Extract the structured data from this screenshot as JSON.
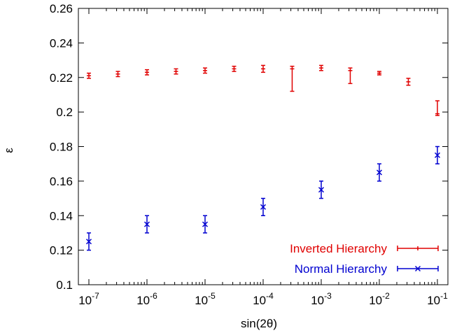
{
  "chart_data": {
    "type": "scatter",
    "title": "",
    "xlabel": "sin(2θ)",
    "ylabel": "ε",
    "x_scale": "log",
    "xlim": [
      1e-07,
      0.1
    ],
    "ylim": [
      0.1,
      0.26
    ],
    "grid": false,
    "legend_position": "bottom-right",
    "x_ticks": [
      {
        "value": 1e-07,
        "base": "10",
        "exp": "-7"
      },
      {
        "value": 1e-06,
        "base": "10",
        "exp": "-6"
      },
      {
        "value": 1e-05,
        "base": "10",
        "exp": "-5"
      },
      {
        "value": 0.0001,
        "base": "10",
        "exp": "-4"
      },
      {
        "value": 0.001,
        "base": "10",
        "exp": "-3"
      },
      {
        "value": 0.01,
        "base": "10",
        "exp": "-2"
      },
      {
        "value": 0.1,
        "base": "10",
        "exp": "-1"
      }
    ],
    "y_ticks": [
      {
        "value": 0.1,
        "label": "0.1"
      },
      {
        "value": 0.12,
        "label": "0.12"
      },
      {
        "value": 0.14,
        "label": "0.14"
      },
      {
        "value": 0.16,
        "label": "0.16"
      },
      {
        "value": 0.18,
        "label": "0.18"
      },
      {
        "value": 0.2,
        "label": "0.2"
      },
      {
        "value": 0.22,
        "label": "0.22"
      },
      {
        "value": 0.24,
        "label": "0.24"
      },
      {
        "value": 0.26,
        "label": "0.26"
      }
    ],
    "series": [
      {
        "name": "Inverted Hierarchy",
        "color": "#e00000",
        "marker": "plus",
        "points": [
          {
            "x": 1e-07,
            "y": 0.221,
            "low": 0.2195,
            "high": 0.2225
          },
          {
            "x": 3.16e-07,
            "y": 0.222,
            "low": 0.2205,
            "high": 0.2235
          },
          {
            "x": 1e-06,
            "y": 0.223,
            "low": 0.2215,
            "high": 0.2245
          },
          {
            "x": 3.16e-06,
            "y": 0.2235,
            "low": 0.222,
            "high": 0.225
          },
          {
            "x": 1e-05,
            "y": 0.224,
            "low": 0.2225,
            "high": 0.2255
          },
          {
            "x": 3.16e-05,
            "y": 0.225,
            "low": 0.2235,
            "high": 0.2265
          },
          {
            "x": 0.0001,
            "y": 0.225,
            "low": 0.223,
            "high": 0.227
          },
          {
            "x": 0.000316,
            "y": 0.225,
            "low": 0.212,
            "high": 0.2265
          },
          {
            "x": 0.001,
            "y": 0.2255,
            "low": 0.224,
            "high": 0.227
          },
          {
            "x": 0.00316,
            "y": 0.224,
            "low": 0.2165,
            "high": 0.2255
          },
          {
            "x": 0.01,
            "y": 0.2225,
            "low": 0.2215,
            "high": 0.2235
          },
          {
            "x": 0.0316,
            "y": 0.2175,
            "low": 0.2155,
            "high": 0.2195
          },
          {
            "x": 0.1,
            "y": 0.199,
            "low": 0.198,
            "high": 0.2065
          }
        ]
      },
      {
        "name": "Normal Hierarchy",
        "color": "#0000d0",
        "marker": "cross",
        "points": [
          {
            "x": 1e-07,
            "y": 0.125,
            "low": 0.12,
            "high": 0.13
          },
          {
            "x": 1e-06,
            "y": 0.135,
            "low": 0.13,
            "high": 0.14
          },
          {
            "x": 1e-05,
            "y": 0.135,
            "low": 0.13,
            "high": 0.14
          },
          {
            "x": 0.0001,
            "y": 0.145,
            "low": 0.14,
            "high": 0.15
          },
          {
            "x": 0.001,
            "y": 0.155,
            "low": 0.15,
            "high": 0.16
          },
          {
            "x": 0.01,
            "y": 0.165,
            "low": 0.16,
            "high": 0.17
          },
          {
            "x": 0.1,
            "y": 0.175,
            "low": 0.17,
            "high": 0.18
          }
        ]
      }
    ]
  }
}
